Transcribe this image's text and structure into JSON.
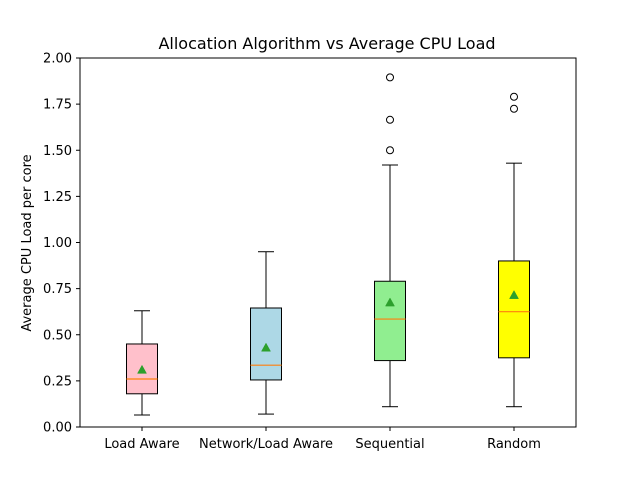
{
  "chart_data": {
    "type": "box",
    "title": "Allocation Algorithm vs Average CPU Load",
    "xlabel": "",
    "ylabel": "Average CPU Load per core",
    "ylim": [
      0,
      2.0
    ],
    "yticks": [
      "0.00",
      "0.25",
      "0.50",
      "0.75",
      "1.00",
      "1.25",
      "1.50",
      "1.75",
      "2.00"
    ],
    "grid": false,
    "colors": {
      "median": "#ff7f0e",
      "mean_marker": "#2ca02c",
      "outline": "#000000"
    },
    "boxes": [
      {
        "category": "Load Aware",
        "fill": "#ffc0cb",
        "whisker_low": 0.065,
        "q1": 0.18,
        "median": 0.26,
        "q3": 0.45,
        "whisker_high": 0.63,
        "mean": 0.31,
        "outliers": []
      },
      {
        "category": "Network/Load Aware",
        "fill": "#add8e6",
        "whisker_low": 0.07,
        "q1": 0.255,
        "median": 0.335,
        "q3": 0.645,
        "whisker_high": 0.95,
        "mean": 0.43,
        "outliers": []
      },
      {
        "category": "Sequential",
        "fill": "#90ee90",
        "whisker_low": 0.11,
        "q1": 0.36,
        "median": 0.585,
        "q3": 0.79,
        "whisker_high": 1.42,
        "mean": 0.675,
        "outliers": [
          1.5,
          1.665,
          1.895
        ]
      },
      {
        "category": "Random",
        "fill": "#ffff00",
        "whisker_low": 0.11,
        "q1": 0.375,
        "median": 0.625,
        "q3": 0.9,
        "whisker_high": 1.43,
        "mean": 0.715,
        "outliers": [
          1.725,
          1.79
        ]
      }
    ]
  }
}
